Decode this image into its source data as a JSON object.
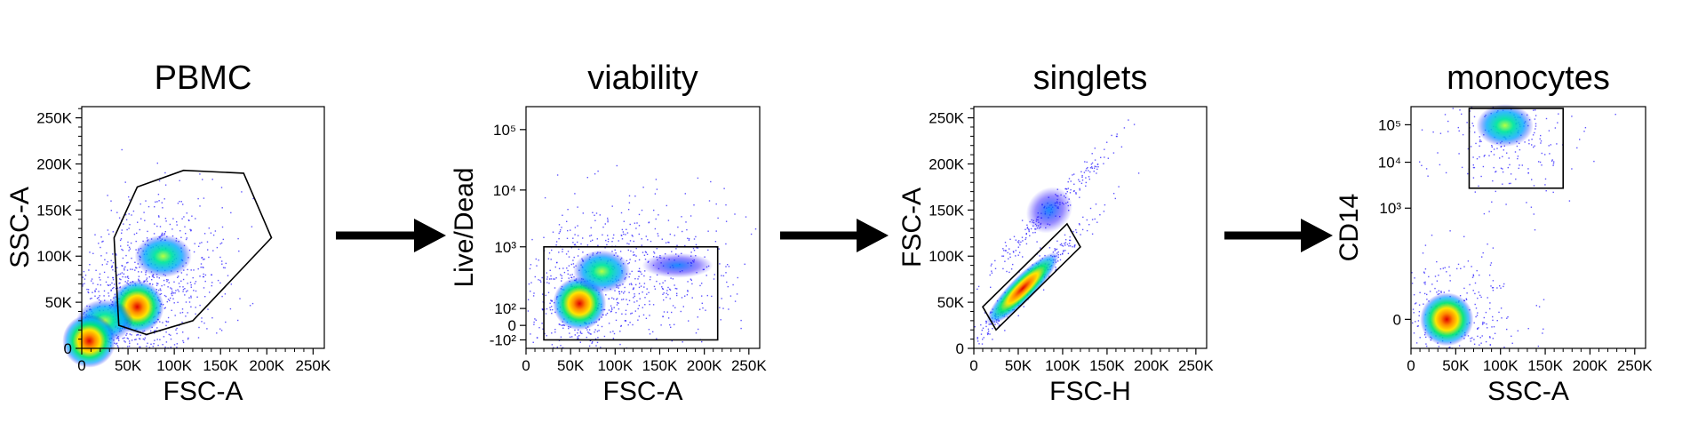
{
  "chart_data": [
    {
      "type": "scatter",
      "title": "PBMC",
      "xlabel": "FSC-A",
      "ylabel": "SSC-A",
      "xlim": [
        0,
        262144
      ],
      "ylim": [
        0,
        262144
      ],
      "xticks": [
        "0",
        "50K",
        "100K",
        "150K",
        "200K",
        "250K"
      ],
      "yticks": [
        "0",
        "50K",
        "100K",
        "150K",
        "200K",
        "250K"
      ],
      "density_clusters": [
        {
          "x": 60000,
          "y": 45000,
          "level": "high"
        },
        {
          "x": 88000,
          "y": 100000,
          "level": "medium"
        },
        {
          "x": 25000,
          "y": 30000,
          "level": "medium"
        },
        {
          "x": 8000,
          "y": 8000,
          "level": "high"
        }
      ],
      "gate": [
        [
          40000,
          25000
        ],
        [
          35000,
          120000
        ],
        [
          60000,
          175000
        ],
        [
          110000,
          193000
        ],
        [
          175000,
          190000
        ],
        [
          205000,
          120000
        ],
        [
          120000,
          30000
        ],
        [
          70000,
          15000
        ]
      ]
    },
    {
      "type": "scatter",
      "title": "viability",
      "xlabel": "FSC-A",
      "ylabel": "Live/Dead",
      "xlim": [
        0,
        262144
      ],
      "yscale": "biexponential",
      "xticks": [
        "0",
        "50K",
        "100K",
        "150K",
        "200K",
        "250K"
      ],
      "yticks": [
        "-10²",
        "0",
        "10²",
        "10³",
        "10⁴",
        "10⁵"
      ],
      "density_clusters": [
        {
          "x": 60000,
          "y": 120,
          "level": "high"
        },
        {
          "x": 85000,
          "y": 400,
          "level": "medium"
        },
        {
          "x": 170000,
          "y": 500,
          "level": "low"
        }
      ],
      "gate": "rectangle FSC-A 20000–215000, Live/Dead -10² to 10³"
    },
    {
      "type": "scatter",
      "title": "singlets",
      "xlabel": "FSC-H",
      "ylabel": "FSC-A",
      "xlim": [
        0,
        262144
      ],
      "ylim": [
        0,
        262144
      ],
      "xticks": [
        "0",
        "50K",
        "100K",
        "150K",
        "200K",
        "250K"
      ],
      "yticks": [
        "0",
        "50K",
        "100K",
        "150K",
        "200K",
        "250K"
      ],
      "density_clusters": [
        {
          "x": 55000,
          "y": 65000,
          "level": "high"
        },
        {
          "x": 85000,
          "y": 150000,
          "level": "low"
        }
      ],
      "gate": [
        [
          10000,
          45000
        ],
        [
          25000,
          20000
        ],
        [
          120000,
          110000
        ],
        [
          105000,
          135000
        ]
      ]
    },
    {
      "type": "scatter",
      "title": "monocytes",
      "xlabel": "SSC-A",
      "ylabel": "CD14",
      "xlim": [
        0,
        262144
      ],
      "yscale": "biexponential",
      "xticks": [
        "0",
        "50K",
        "100K",
        "150K",
        "200K",
        "250K"
      ],
      "yticks": [
        "0",
        "10³",
        "10⁴",
        "10⁵"
      ],
      "density_clusters": [
        {
          "x": 40000,
          "y": 0,
          "level": "high"
        },
        {
          "x": 105000,
          "y": 90000,
          "level": "medium"
        }
      ],
      "gate": "rectangle SSC-A 65000–170000, CD14 ~2×10³ to 2.5×10⁵"
    }
  ],
  "colors": {
    "low": "#1a00ff",
    "mid_low": "#00a8ff",
    "mid": "#00e676",
    "mid_high": "#ffe600",
    "high": "#e00000",
    "arrow": "#000000",
    "gate": "#000000"
  }
}
